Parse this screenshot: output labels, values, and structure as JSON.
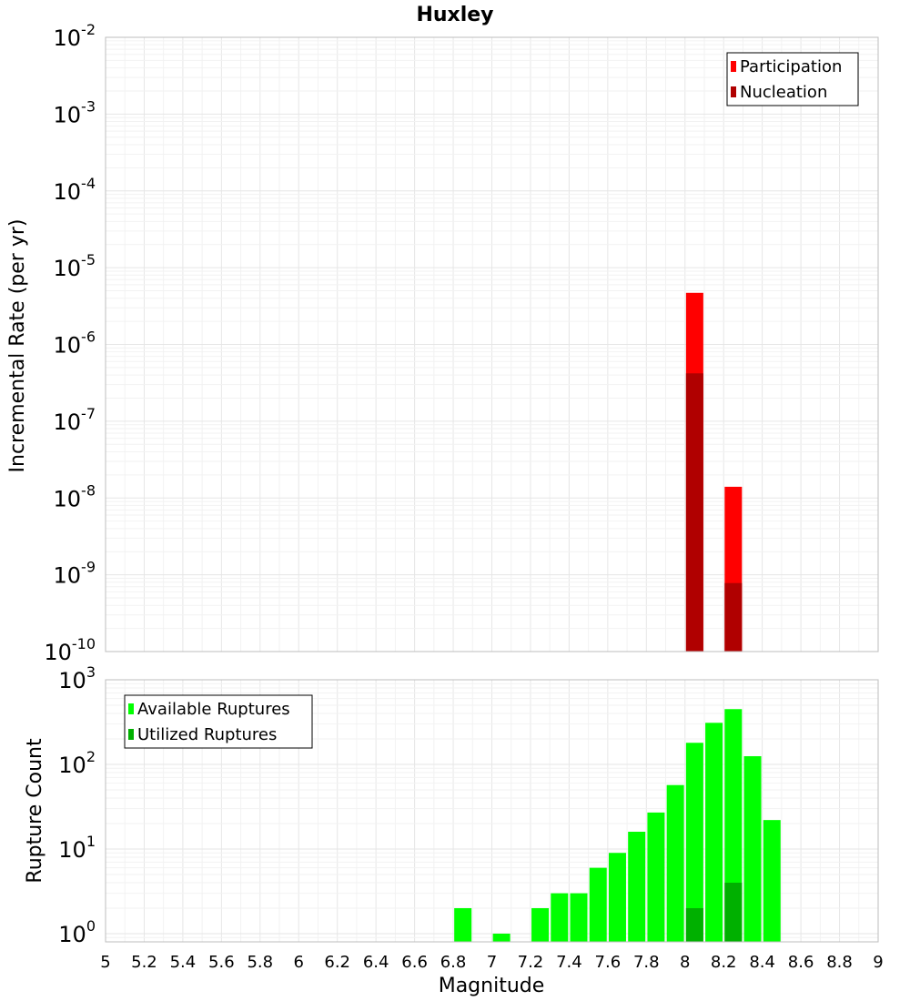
{
  "chart_data": [
    {
      "type": "bar",
      "title": "Huxley",
      "ylabel": "Incremental Rate (per yr)",
      "xlabel": "",
      "yscale": "log",
      "ylim": [
        1e-10,
        0.01
      ],
      "xlim": [
        5,
        9
      ],
      "ytick_exponents": [
        "-10",
        "-9",
        "-8",
        "-7",
        "-6",
        "-5",
        "-4",
        "-3",
        "-2"
      ],
      "legend_position": "top-right",
      "grid": true,
      "series": [
        {
          "name": "Participation",
          "color": "#ff0000",
          "x": [
            8.05,
            8.25
          ],
          "values": [
            4.7e-06,
            1.4e-08
          ]
        },
        {
          "name": "Nucleation",
          "color": "#b00000",
          "x": [
            8.05,
            8.25
          ],
          "values": [
            4.2e-07,
            7.8e-10
          ]
        }
      ]
    },
    {
      "type": "bar",
      "title": "",
      "ylabel": "Rupture Count",
      "xlabel": "Magnitude",
      "yscale": "log",
      "ylim": [
        0.8,
        1000
      ],
      "xlim": [
        5,
        9
      ],
      "ytick_exponents": [
        "0",
        "1",
        "2",
        "3"
      ],
      "xticks": [
        "5",
        "5.2",
        "5.4",
        "5.6",
        "5.8",
        "6",
        "6.2",
        "6.4",
        "6.6",
        "6.8",
        "7",
        "7.2",
        "7.4",
        "7.6",
        "7.8",
        "8",
        "8.2",
        "8.4",
        "8.6",
        "8.8",
        "9"
      ],
      "legend_position": "top-left",
      "grid": true,
      "series": [
        {
          "name": "Available Ruptures",
          "color": "#00ff00",
          "x": [
            6.85,
            7.05,
            7.25,
            7.35,
            7.45,
            7.55,
            7.65,
            7.75,
            7.85,
            7.95,
            8.05,
            8.15,
            8.25,
            8.35,
            8.45
          ],
          "values": [
            2,
            1,
            2,
            3,
            3,
            6,
            9,
            16,
            27,
            57,
            180,
            310,
            450,
            125,
            22
          ]
        },
        {
          "name": "Utilized Ruptures",
          "color": "#00b000",
          "x": [
            8.05,
            8.25
          ],
          "values": [
            2,
            4
          ]
        }
      ]
    }
  ],
  "ytick_base": "10"
}
